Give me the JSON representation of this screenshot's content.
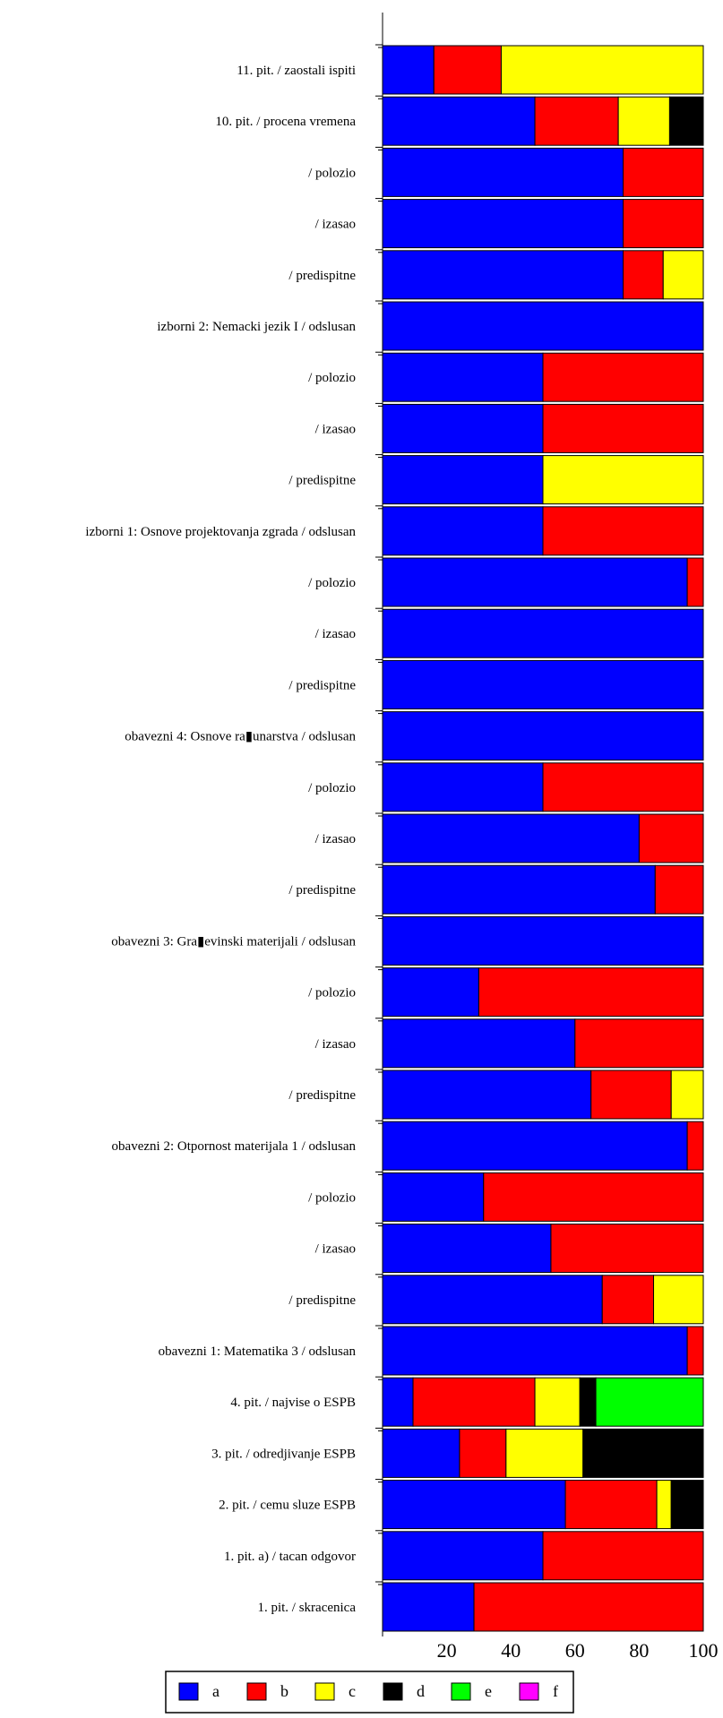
{
  "chart_data": {
    "type": "bar",
    "orientation": "horizontal",
    "stacked": true,
    "title": "",
    "xlabel": "",
    "ylabel": "",
    "xlim": [
      0,
      100
    ],
    "x_ticks": [
      20,
      40,
      60,
      80,
      100
    ],
    "grid": false,
    "legend_position": "bottom",
    "categories": [
      "11. pit. / zaostali ispiti",
      "10. pit. / procena vremena",
      "/ polozio",
      "/ izasao",
      "/ predispitne",
      "izborni 2: Nemacki jezik I / odslusan",
      "/ polozio",
      "/ izasao",
      "/ predispitne",
      "izborni 1: Osnove projektovanja zgrada / odslusan",
      "/ polozio",
      "/ izasao",
      "/ predispitne",
      "obavezni 4: Osnove ra▮unarstva / odslusan",
      "/ polozio",
      "/ izasao",
      "/ predispitne",
      "obavezni 3:  Gra▮evinski materijali  / odslusan",
      "/ polozio",
      "/ izasao",
      "/ predispitne",
      "obavezni 2: Otpornost materijala 1 / odslusan",
      "/ polozio",
      "/ izasao",
      "/ predispitne",
      "obavezni 1: Matematika 3 / odslusan",
      "4. pit. / najvise o ESPB",
      "3. pit. / odredjivanje ESPB",
      "2. pit. / cemu sluze ESPB",
      "1. pit. a) / tacan odgovor",
      "1. pit. / skracenica"
    ],
    "series": [
      {
        "name": "a",
        "color": "#0000ff",
        "values": [
          16,
          47.5,
          75,
          75,
          75,
          100,
          50,
          50,
          50,
          50,
          95,
          100,
          100,
          100,
          50,
          80,
          85,
          100,
          30,
          60,
          65,
          95,
          31.5,
          52.5,
          68.5,
          95,
          9.5,
          24,
          57,
          50,
          28.5
        ]
      },
      {
        "name": "b",
        "color": "#ff0000",
        "values": [
          21,
          26,
          25,
          25,
          12.5,
          0,
          50,
          50,
          0,
          50,
          5,
          0,
          0,
          0,
          50,
          20,
          15,
          0,
          70,
          40,
          25,
          5,
          68.5,
          47.5,
          16,
          5,
          38,
          14.5,
          28.5,
          50,
          71.5
        ]
      },
      {
        "name": "c",
        "color": "#ffff00",
        "values": [
          63,
          16,
          0,
          0,
          12.5,
          0,
          0,
          0,
          50,
          0,
          0,
          0,
          0,
          0,
          0,
          0,
          0,
          0,
          0,
          0,
          10,
          0,
          0,
          0,
          15.5,
          0,
          14,
          24,
          4.5,
          0,
          0
        ]
      },
      {
        "name": "d",
        "color": "#000000",
        "values": [
          0,
          10.5,
          0,
          0,
          0,
          0,
          0,
          0,
          0,
          0,
          0,
          0,
          0,
          0,
          0,
          0,
          0,
          0,
          0,
          0,
          0,
          0,
          0,
          0,
          0,
          0,
          5,
          37.5,
          10,
          0,
          0
        ]
      },
      {
        "name": "e",
        "color": "#00ff00",
        "values": [
          0,
          0,
          0,
          0,
          0,
          0,
          0,
          0,
          0,
          0,
          0,
          0,
          0,
          0,
          0,
          0,
          0,
          0,
          0,
          0,
          0,
          0,
          0,
          0,
          0,
          0,
          33.5,
          0,
          0,
          0,
          0
        ]
      },
      {
        "name": "f",
        "color": "#ff00ff",
        "values": [
          0,
          0,
          0,
          0,
          0,
          0,
          0,
          0,
          0,
          0,
          0,
          0,
          0,
          0,
          0,
          0,
          0,
          0,
          0,
          0,
          0,
          0,
          0,
          0,
          0,
          0,
          0,
          0,
          0,
          0,
          0
        ]
      }
    ]
  }
}
